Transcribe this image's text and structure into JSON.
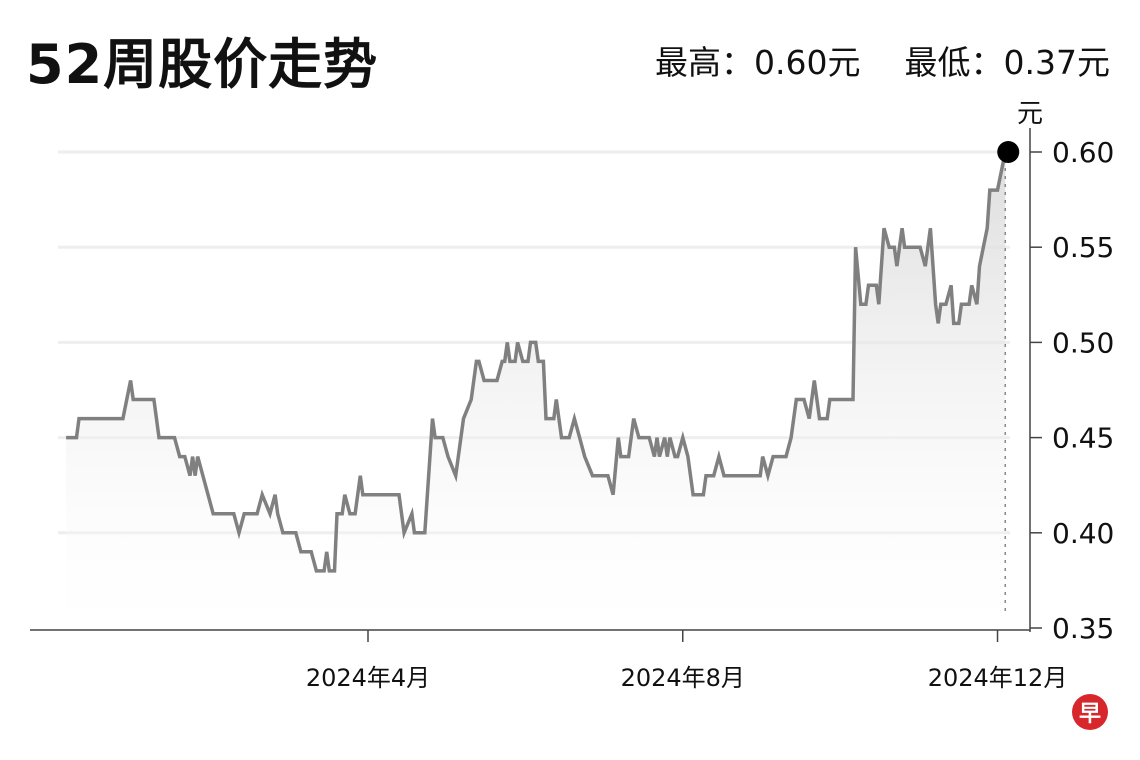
{
  "title": "52周股价走势",
  "stats": {
    "high": "最高：0.60元",
    "low": "最低：0.37元"
  },
  "logo_text": "早",
  "chart_data": {
    "type": "area",
    "title": "52周股价走势",
    "ylabel": "元",
    "xlabel": "",
    "ylim": [
      0.35,
      0.6
    ],
    "yticks": [
      "0.35",
      "0.40",
      "0.45",
      "0.50",
      "0.55",
      "0.60"
    ],
    "xticks": [
      {
        "date": "2024-04-01",
        "label": "2024年4月"
      },
      {
        "date": "2024-08-01",
        "label": "2024年8月"
      },
      {
        "date": "2024-12-01",
        "label": "2024年12月"
      }
    ],
    "grid": true,
    "line_color": "#808080",
    "fill_color": "#e6e6e6",
    "marker_color": "#000000",
    "series": [
      {
        "points": [
          [
            "2023-12-06",
            0.45
          ],
          [
            "2023-12-10",
            0.45
          ],
          [
            "2023-12-11",
            0.46
          ],
          [
            "2023-12-28",
            0.46
          ],
          [
            "2023-12-31",
            0.48
          ],
          [
            "2024-01-01",
            0.47
          ],
          [
            "2024-01-09",
            0.47
          ],
          [
            "2024-01-11",
            0.45
          ],
          [
            "2024-01-17",
            0.45
          ],
          [
            "2024-01-19",
            0.44
          ],
          [
            "2024-01-21",
            0.44
          ],
          [
            "2024-01-23",
            0.43
          ],
          [
            "2024-01-24",
            0.44
          ],
          [
            "2024-01-25",
            0.43
          ],
          [
            "2024-01-26",
            0.44
          ],
          [
            "2024-02-01",
            0.41
          ],
          [
            "2024-02-09",
            0.41
          ],
          [
            "2024-02-11",
            0.4
          ],
          [
            "2024-02-13",
            0.41
          ],
          [
            "2024-02-18",
            0.41
          ],
          [
            "2024-02-20",
            0.42
          ],
          [
            "2024-02-23",
            0.41
          ],
          [
            "2024-02-25",
            0.42
          ],
          [
            "2024-02-26",
            0.41
          ],
          [
            "2024-02-28",
            0.4
          ],
          [
            "2024-03-04",
            0.4
          ],
          [
            "2024-03-06",
            0.39
          ],
          [
            "2024-03-10",
            0.39
          ],
          [
            "2024-03-12",
            0.38
          ],
          [
            "2024-03-15",
            0.38
          ],
          [
            "2024-03-16",
            0.39
          ],
          [
            "2024-03-17",
            0.38
          ],
          [
            "2024-03-19",
            0.38
          ],
          [
            "2024-03-20",
            0.41
          ],
          [
            "2024-03-22",
            0.41
          ],
          [
            "2024-03-23",
            0.42
          ],
          [
            "2024-03-25",
            0.41
          ],
          [
            "2024-03-27",
            0.41
          ],
          [
            "2024-03-29",
            0.43
          ],
          [
            "2024-03-30",
            0.42
          ],
          [
            "2024-04-13",
            0.42
          ],
          [
            "2024-04-15",
            0.4
          ],
          [
            "2024-04-18",
            0.41
          ],
          [
            "2024-04-19",
            0.4
          ],
          [
            "2024-04-23",
            0.4
          ],
          [
            "2024-04-26",
            0.46
          ],
          [
            "2024-04-27",
            0.45
          ],
          [
            "2024-04-30",
            0.45
          ],
          [
            "2024-05-02",
            0.44
          ],
          [
            "2024-05-05",
            0.43
          ],
          [
            "2024-05-08",
            0.46
          ],
          [
            "2024-05-11",
            0.47
          ],
          [
            "2024-05-13",
            0.49
          ],
          [
            "2024-05-14",
            0.49
          ],
          [
            "2024-05-16",
            0.48
          ],
          [
            "2024-05-21",
            0.48
          ],
          [
            "2024-05-23",
            0.49
          ],
          [
            "2024-05-24",
            0.49
          ],
          [
            "2024-05-25",
            0.5
          ],
          [
            "2024-05-26",
            0.49
          ],
          [
            "2024-05-28",
            0.49
          ],
          [
            "2024-05-29",
            0.5
          ],
          [
            "2024-05-31",
            0.49
          ],
          [
            "2024-06-02",
            0.49
          ],
          [
            "2024-06-03",
            0.5
          ],
          [
            "2024-06-05",
            0.5
          ],
          [
            "2024-06-06",
            0.49
          ],
          [
            "2024-06-08",
            0.49
          ],
          [
            "2024-06-09",
            0.46
          ],
          [
            "2024-06-12",
            0.46
          ],
          [
            "2024-06-13",
            0.47
          ],
          [
            "2024-06-14",
            0.46
          ],
          [
            "2024-06-15",
            0.45
          ],
          [
            "2024-06-18",
            0.45
          ],
          [
            "2024-06-20",
            0.46
          ],
          [
            "2024-06-22",
            0.45
          ],
          [
            "2024-06-24",
            0.44
          ],
          [
            "2024-06-27",
            0.43
          ],
          [
            "2024-07-03",
            0.43
          ],
          [
            "2024-07-05",
            0.42
          ],
          [
            "2024-07-07",
            0.45
          ],
          [
            "2024-07-08",
            0.44
          ],
          [
            "2024-07-11",
            0.44
          ],
          [
            "2024-07-13",
            0.46
          ],
          [
            "2024-07-15",
            0.45
          ],
          [
            "2024-07-19",
            0.45
          ],
          [
            "2024-07-21",
            0.44
          ],
          [
            "2024-07-22",
            0.45
          ],
          [
            "2024-07-23",
            0.44
          ],
          [
            "2024-07-25",
            0.45
          ],
          [
            "2024-07-26",
            0.44
          ],
          [
            "2024-07-27",
            0.45
          ],
          [
            "2024-07-29",
            0.44
          ],
          [
            "2024-07-30",
            0.44
          ],
          [
            "2024-08-01",
            0.45
          ],
          [
            "2024-08-03",
            0.44
          ],
          [
            "2024-08-05",
            0.42
          ],
          [
            "2024-08-09",
            0.42
          ],
          [
            "2024-08-10",
            0.43
          ],
          [
            "2024-08-13",
            0.43
          ],
          [
            "2024-08-15",
            0.44
          ],
          [
            "2024-08-17",
            0.43
          ],
          [
            "2024-08-31",
            0.43
          ],
          [
            "2024-09-01",
            0.44
          ],
          [
            "2024-09-03",
            0.43
          ],
          [
            "2024-09-05",
            0.44
          ],
          [
            "2024-09-10",
            0.44
          ],
          [
            "2024-09-12",
            0.45
          ],
          [
            "2024-09-14",
            0.47
          ],
          [
            "2024-09-17",
            0.47
          ],
          [
            "2024-09-19",
            0.46
          ],
          [
            "2024-09-21",
            0.48
          ],
          [
            "2024-09-23",
            0.46
          ],
          [
            "2024-09-26",
            0.46
          ],
          [
            "2024-09-27",
            0.47
          ],
          [
            "2024-10-06",
            0.47
          ],
          [
            "2024-10-07",
            0.55
          ],
          [
            "2024-10-09",
            0.52
          ],
          [
            "2024-10-11",
            0.52
          ],
          [
            "2024-10-12",
            0.53
          ],
          [
            "2024-10-15",
            0.53
          ],
          [
            "2024-10-16",
            0.52
          ],
          [
            "2024-10-18",
            0.56
          ],
          [
            "2024-10-20",
            0.55
          ],
          [
            "2024-10-22",
            0.55
          ],
          [
            "2024-10-23",
            0.54
          ],
          [
            "2024-10-25",
            0.56
          ],
          [
            "2024-10-26",
            0.55
          ],
          [
            "2024-11-01",
            0.55
          ],
          [
            "2024-11-03",
            0.54
          ],
          [
            "2024-11-05",
            0.56
          ],
          [
            "2024-11-07",
            0.52
          ],
          [
            "2024-11-08",
            0.51
          ],
          [
            "2024-11-09",
            0.52
          ],
          [
            "2024-11-11",
            0.52
          ],
          [
            "2024-11-13",
            0.53
          ],
          [
            "2024-11-14",
            0.51
          ],
          [
            "2024-11-16",
            0.51
          ],
          [
            "2024-11-17",
            0.52
          ],
          [
            "2024-11-20",
            0.52
          ],
          [
            "2024-11-21",
            0.53
          ],
          [
            "2024-11-23",
            0.52
          ],
          [
            "2024-11-24",
            0.54
          ],
          [
            "2024-11-27",
            0.56
          ],
          [
            "2024-11-28",
            0.58
          ],
          [
            "2024-12-01",
            0.58
          ],
          [
            "2024-12-04",
            0.6
          ]
        ]
      }
    ]
  }
}
